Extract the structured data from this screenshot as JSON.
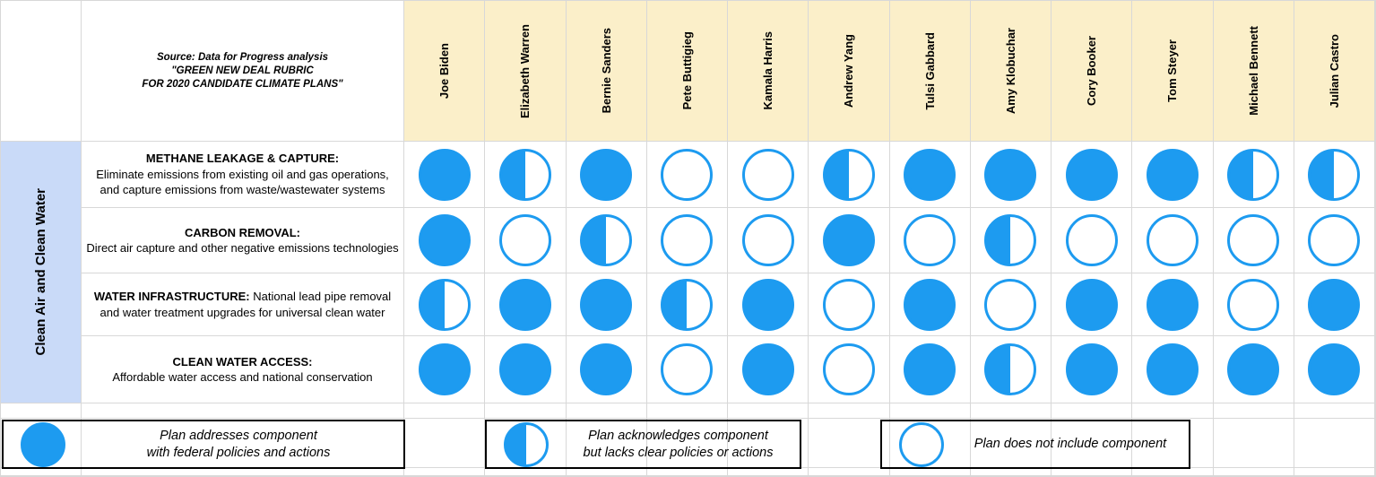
{
  "header": {
    "source_note": [
      "Source: Data for Progress analysis",
      "\"GREEN NEW DEAL RUBRIC",
      "FOR 2020 CANDIDATE CLIMATE PLANS\""
    ],
    "candidates": [
      "Joe Biden",
      "Elizabeth Warren",
      "Bernie Sanders",
      "Pete Buttigieg",
      "Kamala Harris",
      "Andrew Yang",
      "Tulsi Gabbard",
      "Amy Klobuchar",
      "Cory Booker",
      "Tom Steyer",
      "Michael Bennett",
      "Julian Castro"
    ]
  },
  "sidebar": {
    "category": "Clean Air and Clean Water"
  },
  "rows": [
    {
      "title": "METHANE LEAKAGE & CAPTURE:",
      "description": "Eliminate emissions from existing oil and gas operations, and capture emissions from waste/wastewater systems",
      "ratings": [
        "full",
        "half",
        "full",
        "none",
        "none",
        "half",
        "full",
        "full",
        "full",
        "full",
        "half",
        "half"
      ]
    },
    {
      "title": "CARBON REMOVAL:",
      "description": "Direct air capture and other negative emissions technologies",
      "ratings": [
        "full",
        "none",
        "half",
        "none",
        "none",
        "full",
        "none",
        "half",
        "none",
        "none",
        "none",
        "none"
      ]
    },
    {
      "title": "WATER INFRASTRUCTURE:",
      "description": "National lead pipe removal and water treatment upgrades for universal clean water",
      "ratings": [
        "half",
        "full",
        "full",
        "half",
        "full",
        "none",
        "full",
        "none",
        "full",
        "full",
        "none",
        "full"
      ]
    },
    {
      "title": "CLEAN WATER ACCESS:",
      "description": "Affordable water access and national conservation",
      "ratings": [
        "full",
        "full",
        "full",
        "none",
        "full",
        "none",
        "full",
        "half",
        "full",
        "full",
        "full",
        "full"
      ]
    }
  ],
  "legend": [
    {
      "symbol": "full",
      "line1": "Plan addresses component",
      "line2": "with federal policies and actions"
    },
    {
      "symbol": "half",
      "line1": "Plan acknowledges component",
      "line2": "but lacks clear policies or actions"
    },
    {
      "symbol": "none",
      "line1": "Plan does not include component",
      "line2": ""
    }
  ],
  "colors": {
    "circle_blue": "#1D9BF0",
    "header_bg": "#FBEFC9",
    "sidebar_bg": "#C9DAF8",
    "grid_line": "#D8D8D8",
    "legend_border": "#000000"
  },
  "chart_data": {
    "type": "table",
    "title": "GREEN NEW DEAL RUBRIC FOR 2020 CANDIDATE CLIMATE PLANS",
    "source": "Data for Progress analysis",
    "category": "Clean Air and Clean Water",
    "columns": [
      "Joe Biden",
      "Elizabeth Warren",
      "Bernie Sanders",
      "Pete Buttigieg",
      "Kamala Harris",
      "Andrew Yang",
      "Tulsi Gabbard",
      "Amy Klobuchar",
      "Cory Booker",
      "Tom Steyer",
      "Michael Bennett",
      "Julian Castro"
    ],
    "row_labels": [
      "METHANE LEAKAGE & CAPTURE",
      "CARBON REMOVAL",
      "WATER INFRASTRUCTURE",
      "CLEAN WATER ACCESS"
    ],
    "values": [
      [
        "full",
        "half",
        "full",
        "none",
        "none",
        "half",
        "full",
        "full",
        "full",
        "full",
        "half",
        "half"
      ],
      [
        "full",
        "none",
        "half",
        "none",
        "none",
        "full",
        "none",
        "half",
        "none",
        "none",
        "none",
        "none"
      ],
      [
        "half",
        "full",
        "full",
        "half",
        "full",
        "none",
        "full",
        "none",
        "full",
        "full",
        "none",
        "full"
      ],
      [
        "full",
        "full",
        "full",
        "none",
        "full",
        "none",
        "full",
        "half",
        "full",
        "full",
        "full",
        "full"
      ]
    ],
    "score_map": {
      "full": 1,
      "half": 0.5,
      "none": 0
    },
    "value_legend": {
      "full": "Plan addresses component with federal policies and actions",
      "half": "Plan acknowledges component but lacks clear policies or actions",
      "none": "Plan does not include component"
    }
  }
}
